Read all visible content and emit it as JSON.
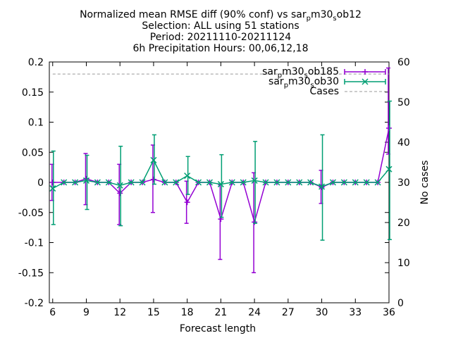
{
  "chart_data": {
    "type": "line",
    "title": [
      "Normalized mean RMSE diff (90% conf) vs sar_pm30_sob12",
      "Selection: ALL using    51 stations",
      "Period: 20211110-20211124",
      "6h Precipitation   Hours: 00,06,12,18"
    ],
    "xlabel": "Forecast length",
    "ylabel": "",
    "y2label": "No cases",
    "xlim": [
      5.7,
      36
    ],
    "ylim": [
      -0.2,
      0.2
    ],
    "y2lim": [
      0,
      60
    ],
    "xticks": [
      6,
      9,
      12,
      15,
      18,
      21,
      24,
      27,
      30,
      33,
      36
    ],
    "yticks": [
      -0.2,
      -0.15,
      -0.1,
      -0.05,
      0,
      0.05,
      0.1,
      0.15,
      0.2
    ],
    "yticklabels": [
      "-0.2",
      "-0.15",
      "-0.1",
      "-0.05",
      "0",
      "0.05",
      "0.1",
      "0.15",
      "0.2"
    ],
    "y2ticks": [
      0,
      10,
      20,
      30,
      40,
      50,
      60
    ],
    "legend_position": "top-right",
    "x": [
      6,
      7,
      8,
      9,
      10,
      11,
      12,
      13,
      14,
      15,
      16,
      17,
      18,
      19,
      20,
      21,
      22,
      23,
      24,
      25,
      26,
      27,
      28,
      29,
      30,
      31,
      32,
      33,
      34,
      35,
      36
    ],
    "series": [
      {
        "name": "sar_pm30_sob185",
        "color": "#9400d3",
        "marker": "plus",
        "values": [
          0.0,
          0.0,
          0.0,
          0.006,
          0.0,
          0.0,
          -0.018,
          0.0,
          0.0,
          0.005,
          0.0,
          0.0,
          -0.033,
          0.0,
          0.0,
          -0.061,
          0.0,
          0.0,
          -0.066,
          0.0,
          0.0,
          0.0,
          0.0,
          0.0,
          -0.008,
          0.0,
          0.0,
          0.0,
          0.0,
          0.0,
          0.09
        ],
        "err_low": [
          -0.03,
          null,
          null,
          -0.037,
          null,
          null,
          -0.07,
          null,
          null,
          -0.05,
          null,
          null,
          -0.068,
          null,
          null,
          -0.128,
          null,
          null,
          -0.15,
          null,
          null,
          null,
          null,
          null,
          -0.035,
          null,
          null,
          null,
          null,
          null,
          0.047
        ],
        "err_high": [
          0.03,
          null,
          null,
          0.048,
          null,
          null,
          0.03,
          null,
          null,
          0.062,
          null,
          null,
          0.002,
          null,
          null,
          -0.004,
          null,
          null,
          0.016,
          null,
          null,
          null,
          null,
          null,
          0.02,
          null,
          null,
          null,
          null,
          null,
          0.19
        ]
      },
      {
        "name": "sar_pm30_sob30",
        "color": "#009e73",
        "marker": "cross",
        "values": [
          -0.01,
          0.0,
          0.0,
          0.003,
          0.0,
          0.0,
          -0.005,
          0.0,
          0.0,
          0.037,
          0.0,
          0.0,
          0.011,
          0.0,
          0.0,
          -0.003,
          0.0,
          0.0,
          0.003,
          0.0,
          0.0,
          0.0,
          0.0,
          0.0,
          -0.007,
          0.0,
          0.0,
          0.0,
          0.0,
          0.0,
          0.022
        ],
        "err_low": [
          -0.07,
          null,
          null,
          -0.045,
          null,
          null,
          -0.072,
          null,
          null,
          -0.003,
          null,
          null,
          -0.02,
          null,
          null,
          -0.058,
          null,
          null,
          -0.068,
          null,
          null,
          null,
          null,
          null,
          -0.096,
          null,
          null,
          null,
          null,
          null,
          -0.095
        ],
        "err_high": [
          0.052,
          null,
          null,
          0.045,
          null,
          null,
          0.06,
          null,
          null,
          0.079,
          null,
          null,
          0.043,
          null,
          null,
          0.046,
          null,
          null,
          0.068,
          null,
          null,
          null,
          null,
          null,
          0.079,
          null,
          null,
          null,
          null,
          null,
          0.135
        ]
      },
      {
        "name": "Cases",
        "color": "#999999",
        "style": "dashed",
        "axis": "y2",
        "values": [
          57,
          57,
          57,
          57,
          57,
          57,
          57,
          57,
          57,
          57,
          57,
          57,
          57,
          57,
          57,
          57,
          57,
          57,
          57,
          57,
          57,
          57,
          57,
          57,
          57,
          57,
          57,
          57,
          57,
          57,
          57
        ]
      }
    ],
    "legend": [
      {
        "label_base": "sar",
        "label_sub1": "p",
        "label_mid": "m30",
        "label_sub2": "s",
        "label_end": "ob185"
      },
      {
        "label_base": "sar",
        "label_sub1": "p",
        "label_mid": "m30",
        "label_sub2": "s",
        "label_end": "ob30"
      },
      {
        "label_base": "Cases",
        "label_sub1": "",
        "label_mid": "",
        "label_sub2": "",
        "label_end": ""
      }
    ]
  }
}
